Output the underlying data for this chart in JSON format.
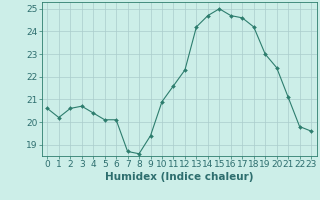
{
  "x": [
    0,
    1,
    2,
    3,
    4,
    5,
    6,
    7,
    8,
    9,
    10,
    11,
    12,
    13,
    14,
    15,
    16,
    17,
    18,
    19,
    20,
    21,
    22,
    23
  ],
  "y": [
    20.6,
    20.2,
    20.6,
    20.7,
    20.4,
    20.1,
    20.1,
    18.7,
    18.6,
    19.4,
    20.9,
    21.6,
    22.3,
    24.2,
    24.7,
    25.0,
    24.7,
    24.6,
    24.2,
    23.0,
    22.4,
    21.1,
    19.8,
    19.6
  ],
  "line_color": "#2d7d6e",
  "marker": "D",
  "marker_size": 2.0,
  "bg_color": "#cceee8",
  "grid_color": "#aacccc",
  "xlabel": "Humidex (Indice chaleur)",
  "xlim": [
    -0.5,
    23.5
  ],
  "ylim": [
    18.5,
    25.3
  ],
  "yticks": [
    19,
    20,
    21,
    22,
    23,
    24,
    25
  ],
  "xticks": [
    0,
    1,
    2,
    3,
    4,
    5,
    6,
    7,
    8,
    9,
    10,
    11,
    12,
    13,
    14,
    15,
    16,
    17,
    18,
    19,
    20,
    21,
    22,
    23
  ],
  "tick_fontsize": 6.5,
  "label_fontsize": 7.5,
  "tick_color": "#2d6e6e",
  "spine_color": "#2d7d6e"
}
